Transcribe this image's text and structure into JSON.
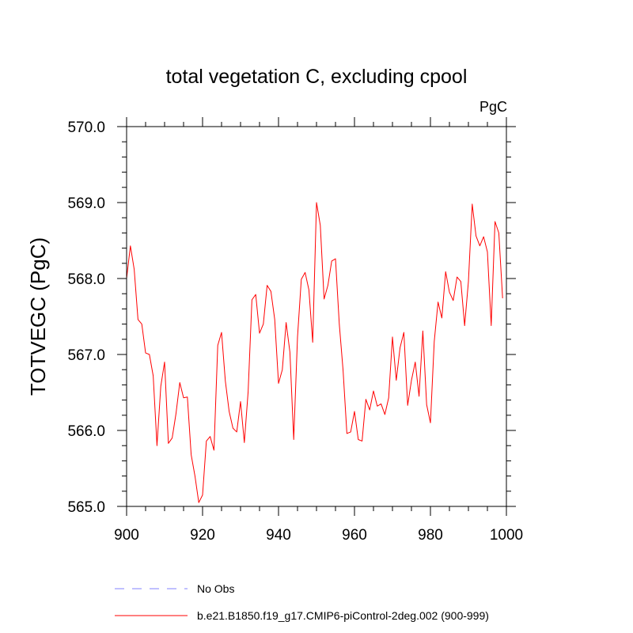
{
  "chart_data": {
    "type": "line",
    "title": "total vegetation C, excluding cpool",
    "units": "PgC",
    "xlabel": "",
    "ylabel": "TOTVEGC  (PgC)",
    "xlim": [
      900,
      1000
    ],
    "ylim": [
      565.0,
      570.0
    ],
    "x_ticks": [
      900,
      920,
      940,
      960,
      980,
      1000
    ],
    "x_tick_labels": [
      "900",
      "920",
      "940",
      "960",
      "980",
      "1000"
    ],
    "y_ticks": [
      565.0,
      566.0,
      567.0,
      568.0,
      569.0,
      570.0
    ],
    "y_tick_labels": [
      "565.0",
      "566.0",
      "567.0",
      "568.0",
      "569.0",
      "570.0"
    ],
    "grid": false,
    "legend_position": "bottom",
    "x": [
      900,
      901,
      902,
      903,
      904,
      905,
      906,
      907,
      908,
      909,
      910,
      911,
      912,
      913,
      914,
      915,
      916,
      917,
      918,
      919,
      920,
      921,
      922,
      923,
      924,
      925,
      926,
      927,
      928,
      929,
      930,
      931,
      932,
      933,
      934,
      935,
      936,
      937,
      938,
      939,
      940,
      941,
      942,
      943,
      944,
      945,
      946,
      947,
      948,
      949,
      950,
      951,
      952,
      953,
      954,
      955,
      956,
      957,
      958,
      959,
      960,
      961,
      962,
      963,
      964,
      965,
      966,
      967,
      968,
      969,
      970,
      971,
      972,
      973,
      974,
      975,
      976,
      977,
      978,
      979,
      980,
      981,
      982,
      983,
      984,
      985,
      986,
      987,
      988,
      989,
      990,
      991,
      992,
      993,
      994,
      995,
      996,
      997,
      998,
      999
    ],
    "series": [
      {
        "name": "b.e21.B1850.f19_g17.CMIP6-piControl-2deg.002 (900-999)",
        "color": "#ff0000",
        "dash": "solid",
        "values": [
          568.0,
          568.43,
          568.12,
          567.46,
          567.4,
          567.02,
          567.0,
          566.72,
          565.8,
          566.58,
          566.9,
          565.83,
          565.9,
          566.22,
          566.63,
          566.43,
          566.44,
          565.68,
          565.4,
          565.05,
          565.15,
          565.86,
          565.92,
          565.74,
          567.12,
          567.29,
          566.65,
          566.25,
          566.03,
          565.98,
          566.38,
          565.84,
          566.51,
          567.72,
          567.79,
          567.28,
          567.4,
          567.91,
          567.83,
          567.46,
          566.62,
          566.8,
          567.42,
          567.03,
          565.88,
          567.23,
          567.99,
          568.08,
          567.85,
          567.16,
          569.0,
          568.7,
          567.73,
          567.91,
          568.23,
          568.26,
          567.4,
          566.79,
          565.96,
          565.98,
          566.25,
          565.88,
          565.86,
          566.41,
          566.27,
          566.52,
          566.32,
          566.35,
          566.21,
          566.43,
          567.23,
          566.66,
          567.09,
          567.29,
          566.33,
          566.66,
          566.9,
          566.45,
          567.31,
          566.34,
          566.1,
          567.17,
          567.69,
          567.48,
          568.09,
          567.82,
          567.71,
          568.02,
          567.96,
          567.38,
          567.96,
          568.98,
          568.56,
          568.43,
          568.55,
          568.35,
          567.38,
          568.75,
          568.6,
          567.74
        ]
      }
    ],
    "legend": [
      {
        "label": "No Obs",
        "color": "#8080ff",
        "dash": "dashed"
      },
      {
        "label": "b.e21.B1850.f19_g17.CMIP6-piControl-2deg.002 (900-999)",
        "color": "#ff0000",
        "dash": "solid"
      }
    ]
  }
}
